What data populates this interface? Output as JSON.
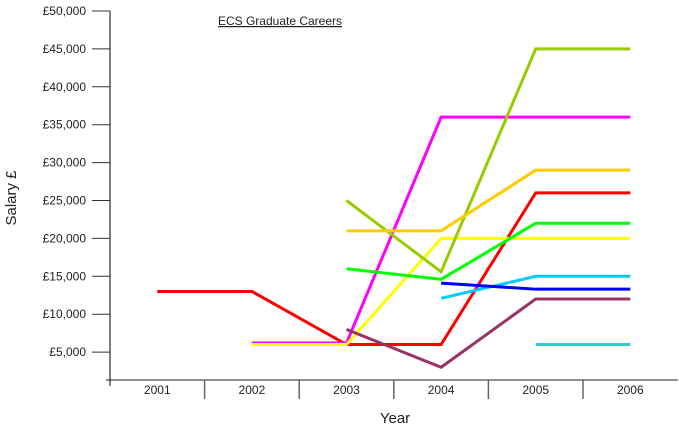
{
  "chart_data": {
    "type": "line",
    "title": "ECS Graduate Careers",
    "xlabel": "Year",
    "ylabel": "Salary £",
    "ylim": [
      0,
      50000
    ],
    "yticks": [
      5000,
      10000,
      15000,
      20000,
      25000,
      30000,
      35000,
      40000,
      45000,
      50000
    ],
    "ytick_labels": [
      "£5,000",
      "£10,000",
      "£15,000",
      "£20,000",
      "£25,000",
      "£30,000",
      "£35,000",
      "£40,000",
      "£45,000",
      "£50,000"
    ],
    "categories": [
      "2001",
      "2002",
      "2003",
      "2004",
      "2005",
      "2006"
    ],
    "grid": false,
    "series": [
      {
        "name": "red",
        "color": "#ff0000",
        "values": [
          13000,
          13000,
          6000,
          6000,
          26000,
          26000
        ]
      },
      {
        "name": "magenta",
        "color": "#ff00ff",
        "values": [
          null,
          6200,
          6200,
          36000,
          36000,
          36000
        ]
      },
      {
        "name": "yellow",
        "color": "#ffff00",
        "values": [
          null,
          6000,
          6000,
          20000,
          20000,
          20000
        ]
      },
      {
        "name": "olive",
        "color": "#99cc00",
        "values": [
          null,
          null,
          25000,
          15600,
          45000,
          45000
        ]
      },
      {
        "name": "gold",
        "color": "#ffcc00",
        "values": [
          null,
          null,
          21000,
          21000,
          29000,
          29000
        ]
      },
      {
        "name": "green",
        "color": "#00ff00",
        "values": [
          null,
          null,
          16000,
          14600,
          22000,
          22000
        ]
      },
      {
        "name": "sky",
        "color": "#00ccff",
        "values": [
          null,
          null,
          null,
          12100,
          15000,
          15000
        ]
      },
      {
        "name": "blue",
        "color": "#0000ff",
        "values": [
          null,
          null,
          null,
          14100,
          13300,
          13300
        ]
      },
      {
        "name": "maroon",
        "color": "#993366",
        "values": [
          null,
          null,
          8000,
          3000,
          12000,
          12000
        ]
      },
      {
        "name": "teal",
        "color": "#33cccc",
        "values": [
          null,
          null,
          null,
          null,
          6000,
          6000
        ]
      }
    ]
  }
}
